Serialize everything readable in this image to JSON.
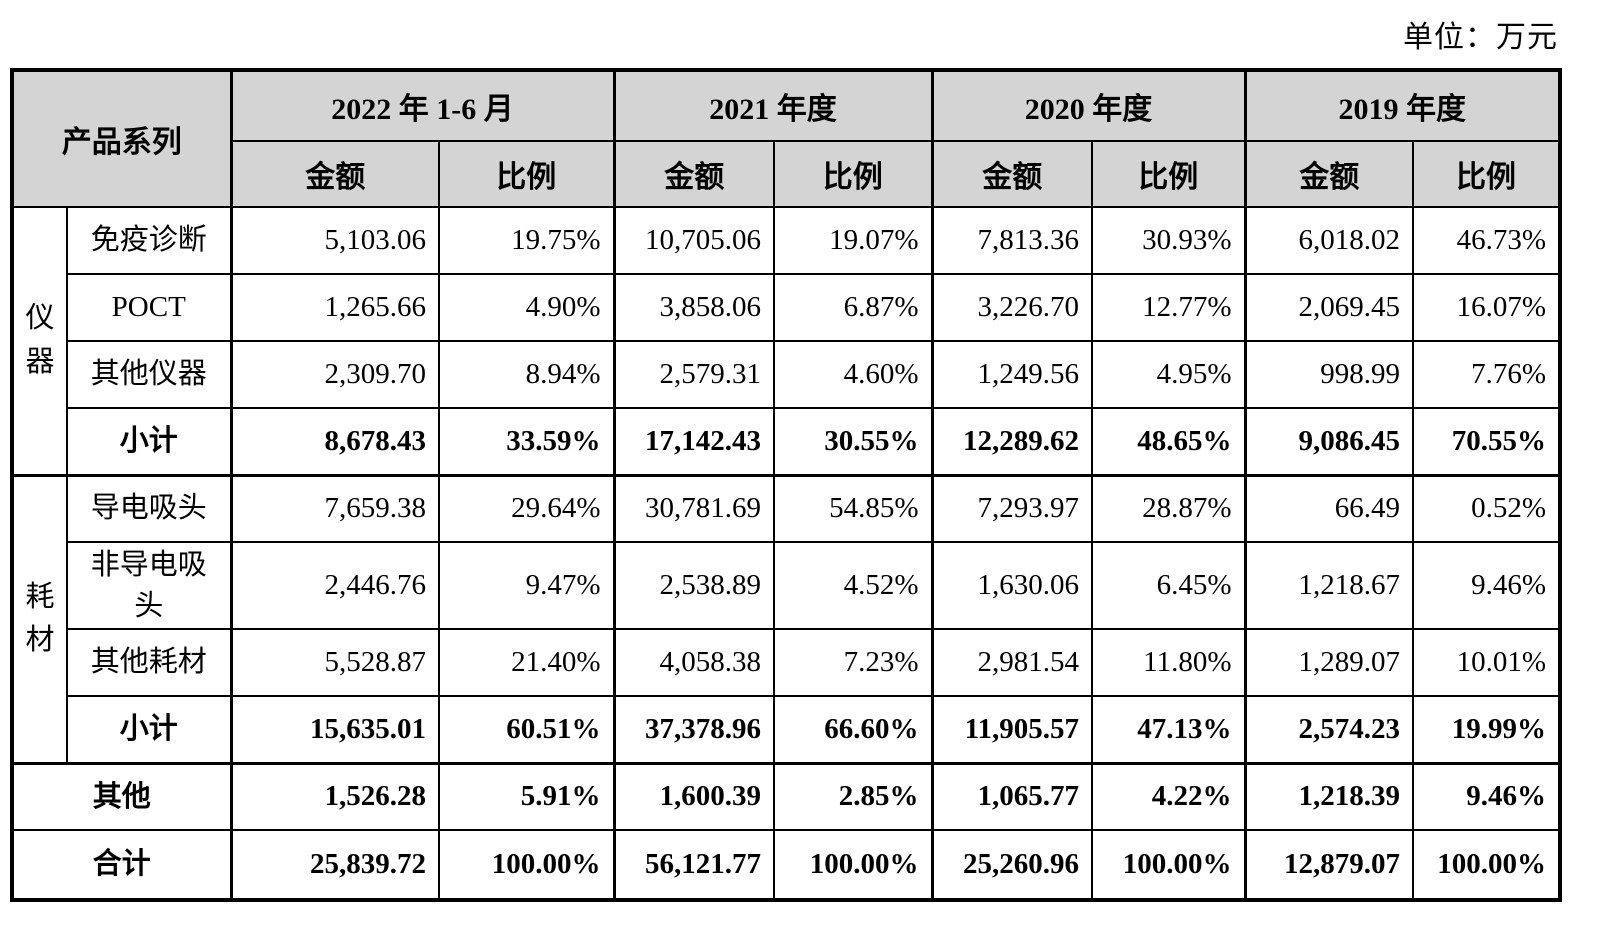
{
  "unit_label": "单位：万元",
  "colors": {
    "header_bg": "#d4d4d4",
    "border": "#000000",
    "text": "#000000"
  },
  "table": {
    "corner_header": "产品系列",
    "periods": [
      "2022 年 1-6 月",
      "2021 年度",
      "2020 年度",
      "2019 年度"
    ],
    "amount_header": "金额",
    "ratio_header": "比例",
    "groups": [
      {
        "name": "仪器",
        "rows": [
          {
            "label": "免疫诊断",
            "bold": false,
            "values": [
              "5,103.06",
              "19.75%",
              "10,705.06",
              "19.07%",
              "7,813.36",
              "30.93%",
              "6,018.02",
              "46.73%"
            ]
          },
          {
            "label": "POCT",
            "bold": false,
            "values": [
              "1,265.66",
              "4.90%",
              "3,858.06",
              "6.87%",
              "3,226.70",
              "12.77%",
              "2,069.45",
              "16.07%"
            ]
          },
          {
            "label": "其他仪器",
            "bold": false,
            "values": [
              "2,309.70",
              "8.94%",
              "2,579.31",
              "4.60%",
              "1,249.56",
              "4.95%",
              "998.99",
              "7.76%"
            ]
          },
          {
            "label": "小计",
            "bold": true,
            "values": [
              "8,678.43",
              "33.59%",
              "17,142.43",
              "30.55%",
              "12,289.62",
              "48.65%",
              "9,086.45",
              "70.55%"
            ]
          }
        ]
      },
      {
        "name": "耗材",
        "rows": [
          {
            "label": "导电吸头",
            "bold": false,
            "values": [
              "7,659.38",
              "29.64%",
              "30,781.69",
              "54.85%",
              "7,293.97",
              "28.87%",
              "66.49",
              "0.52%"
            ]
          },
          {
            "label": "非导电吸头",
            "bold": false,
            "values": [
              "2,446.76",
              "9.47%",
              "2,538.89",
              "4.52%",
              "1,630.06",
              "6.45%",
              "1,218.67",
              "9.46%"
            ]
          },
          {
            "label": "其他耗材",
            "bold": false,
            "values": [
              "5,528.87",
              "21.40%",
              "4,058.38",
              "7.23%",
              "2,981.54",
              "11.80%",
              "1,289.07",
              "10.01%"
            ]
          },
          {
            "label": "小计",
            "bold": true,
            "values": [
              "15,635.01",
              "60.51%",
              "37,378.96",
              "66.60%",
              "11,905.57",
              "47.13%",
              "2,574.23",
              "19.99%"
            ]
          }
        ]
      }
    ],
    "footer_rows": [
      {
        "label": "其他",
        "bold": true,
        "values": [
          "1,526.28",
          "5.91%",
          "1,600.39",
          "2.85%",
          "1,065.77",
          "4.22%",
          "1,218.39",
          "9.46%"
        ]
      },
      {
        "label": "合计",
        "bold": true,
        "values": [
          "25,839.72",
          "100.00%",
          "56,121.77",
          "100.00%",
          "25,260.96",
          "100.00%",
          "12,879.07",
          "100.00%"
        ]
      }
    ]
  }
}
